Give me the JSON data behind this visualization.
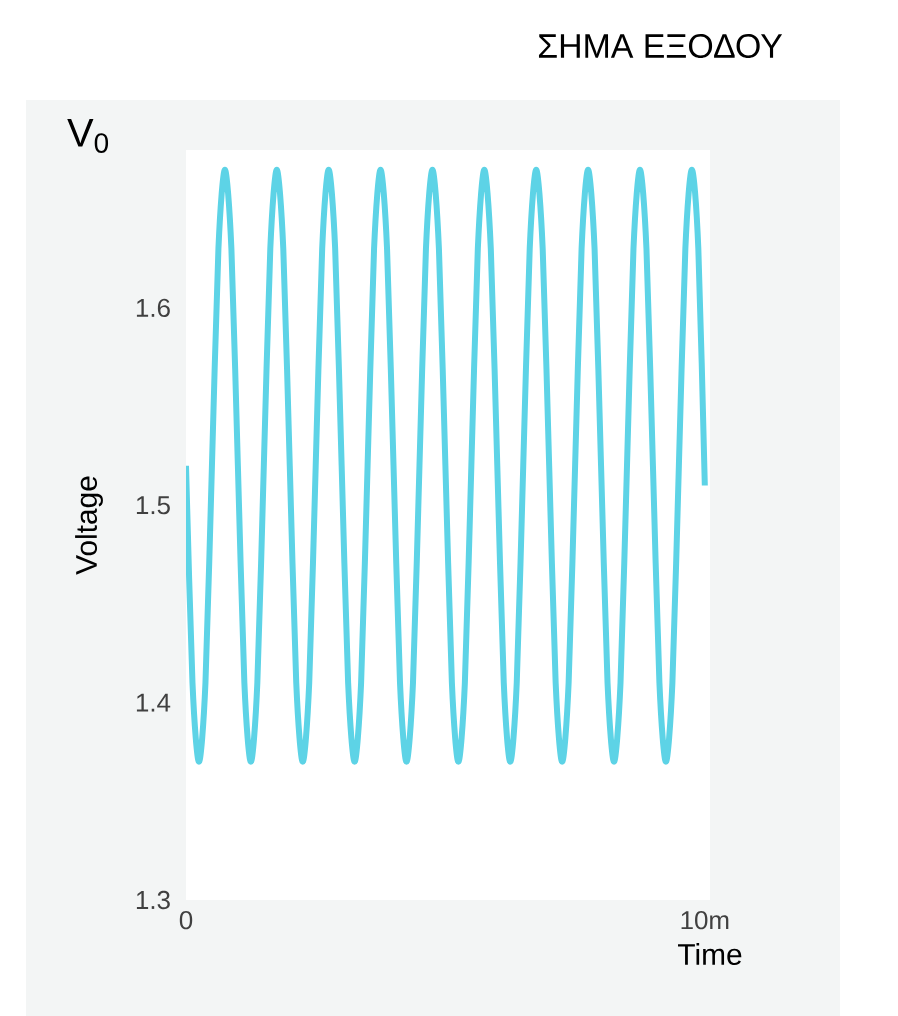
{
  "chart_data": {
    "type": "line",
    "title": "ΣΗΜΑ ΕΞΟΔΟΥ",
    "xlabel": "Time",
    "ylabel": "Voltage",
    "annotations": [
      "V$_{0}$"
    ],
    "series": [
      {
        "color": "#5dd3e6",
        "x": [
          0,
          0.125,
          0.25,
          0.375,
          0.5,
          0.625,
          0.75,
          0.875,
          1,
          1.125,
          1.25,
          1.375,
          1.5,
          1.625,
          1.75,
          1.875,
          2,
          2.125,
          2.25,
          2.375,
          2.5,
          2.625,
          2.75,
          2.875,
          3,
          3.125,
          3.25,
          3.375,
          3.5,
          3.625,
          3.75,
          3.875,
          4,
          4.125,
          4.25,
          4.375,
          4.5,
          4.625,
          4.75,
          4.875,
          5,
          5.125,
          5.25,
          5.375,
          5.5,
          5.625,
          5.75,
          5.875,
          6,
          6.125,
          6.25,
          6.375,
          6.5,
          6.625,
          6.75,
          6.875,
          7,
          7.125,
          7.25,
          7.375,
          7.5,
          7.625,
          7.75,
          7.875,
          8,
          8.125,
          8.25,
          8.375,
          8.5,
          8.625,
          8.75,
          8.875,
          9,
          9.125,
          9.25,
          9.375,
          9.5,
          9.625,
          9.75,
          9.875,
          10
        ],
        "values": [
          1.52,
          1.41,
          1.37,
          1.41,
          1.52,
          1.63,
          1.67,
          1.63,
          1.52,
          1.41,
          1.37,
          1.41,
          1.52,
          1.63,
          1.67,
          1.63,
          1.52,
          1.41,
          1.37,
          1.41,
          1.52,
          1.63,
          1.67,
          1.63,
          1.52,
          1.41,
          1.37,
          1.41,
          1.52,
          1.63,
          1.67,
          1.63,
          1.52,
          1.41,
          1.37,
          1.41,
          1.52,
          1.63,
          1.67,
          1.63,
          1.52,
          1.41,
          1.37,
          1.41,
          1.52,
          1.63,
          1.67,
          1.63,
          1.52,
          1.41,
          1.37,
          1.41,
          1.52,
          1.63,
          1.67,
          1.63,
          1.52,
          1.41,
          1.37,
          1.41,
          1.52,
          1.63,
          1.67,
          1.63,
          1.52,
          1.41,
          1.37,
          1.41,
          1.52,
          1.63,
          1.67,
          1.63,
          1.52,
          1.41,
          1.37,
          1.41,
          1.52,
          1.63,
          1.67,
          1.63,
          1.51
        ]
      }
    ],
    "xlim": [
      0,
      10.1
    ],
    "ylim": [
      1.3,
      1.68
    ],
    "xticks": [
      0,
      {
        "value": 10,
        "label": "10m"
      }
    ],
    "yticks": [
      1.3,
      1.4,
      1.5,
      1.6
    ],
    "marker": "none",
    "line_style": "solid",
    "legend": false,
    "grid": false
  }
}
